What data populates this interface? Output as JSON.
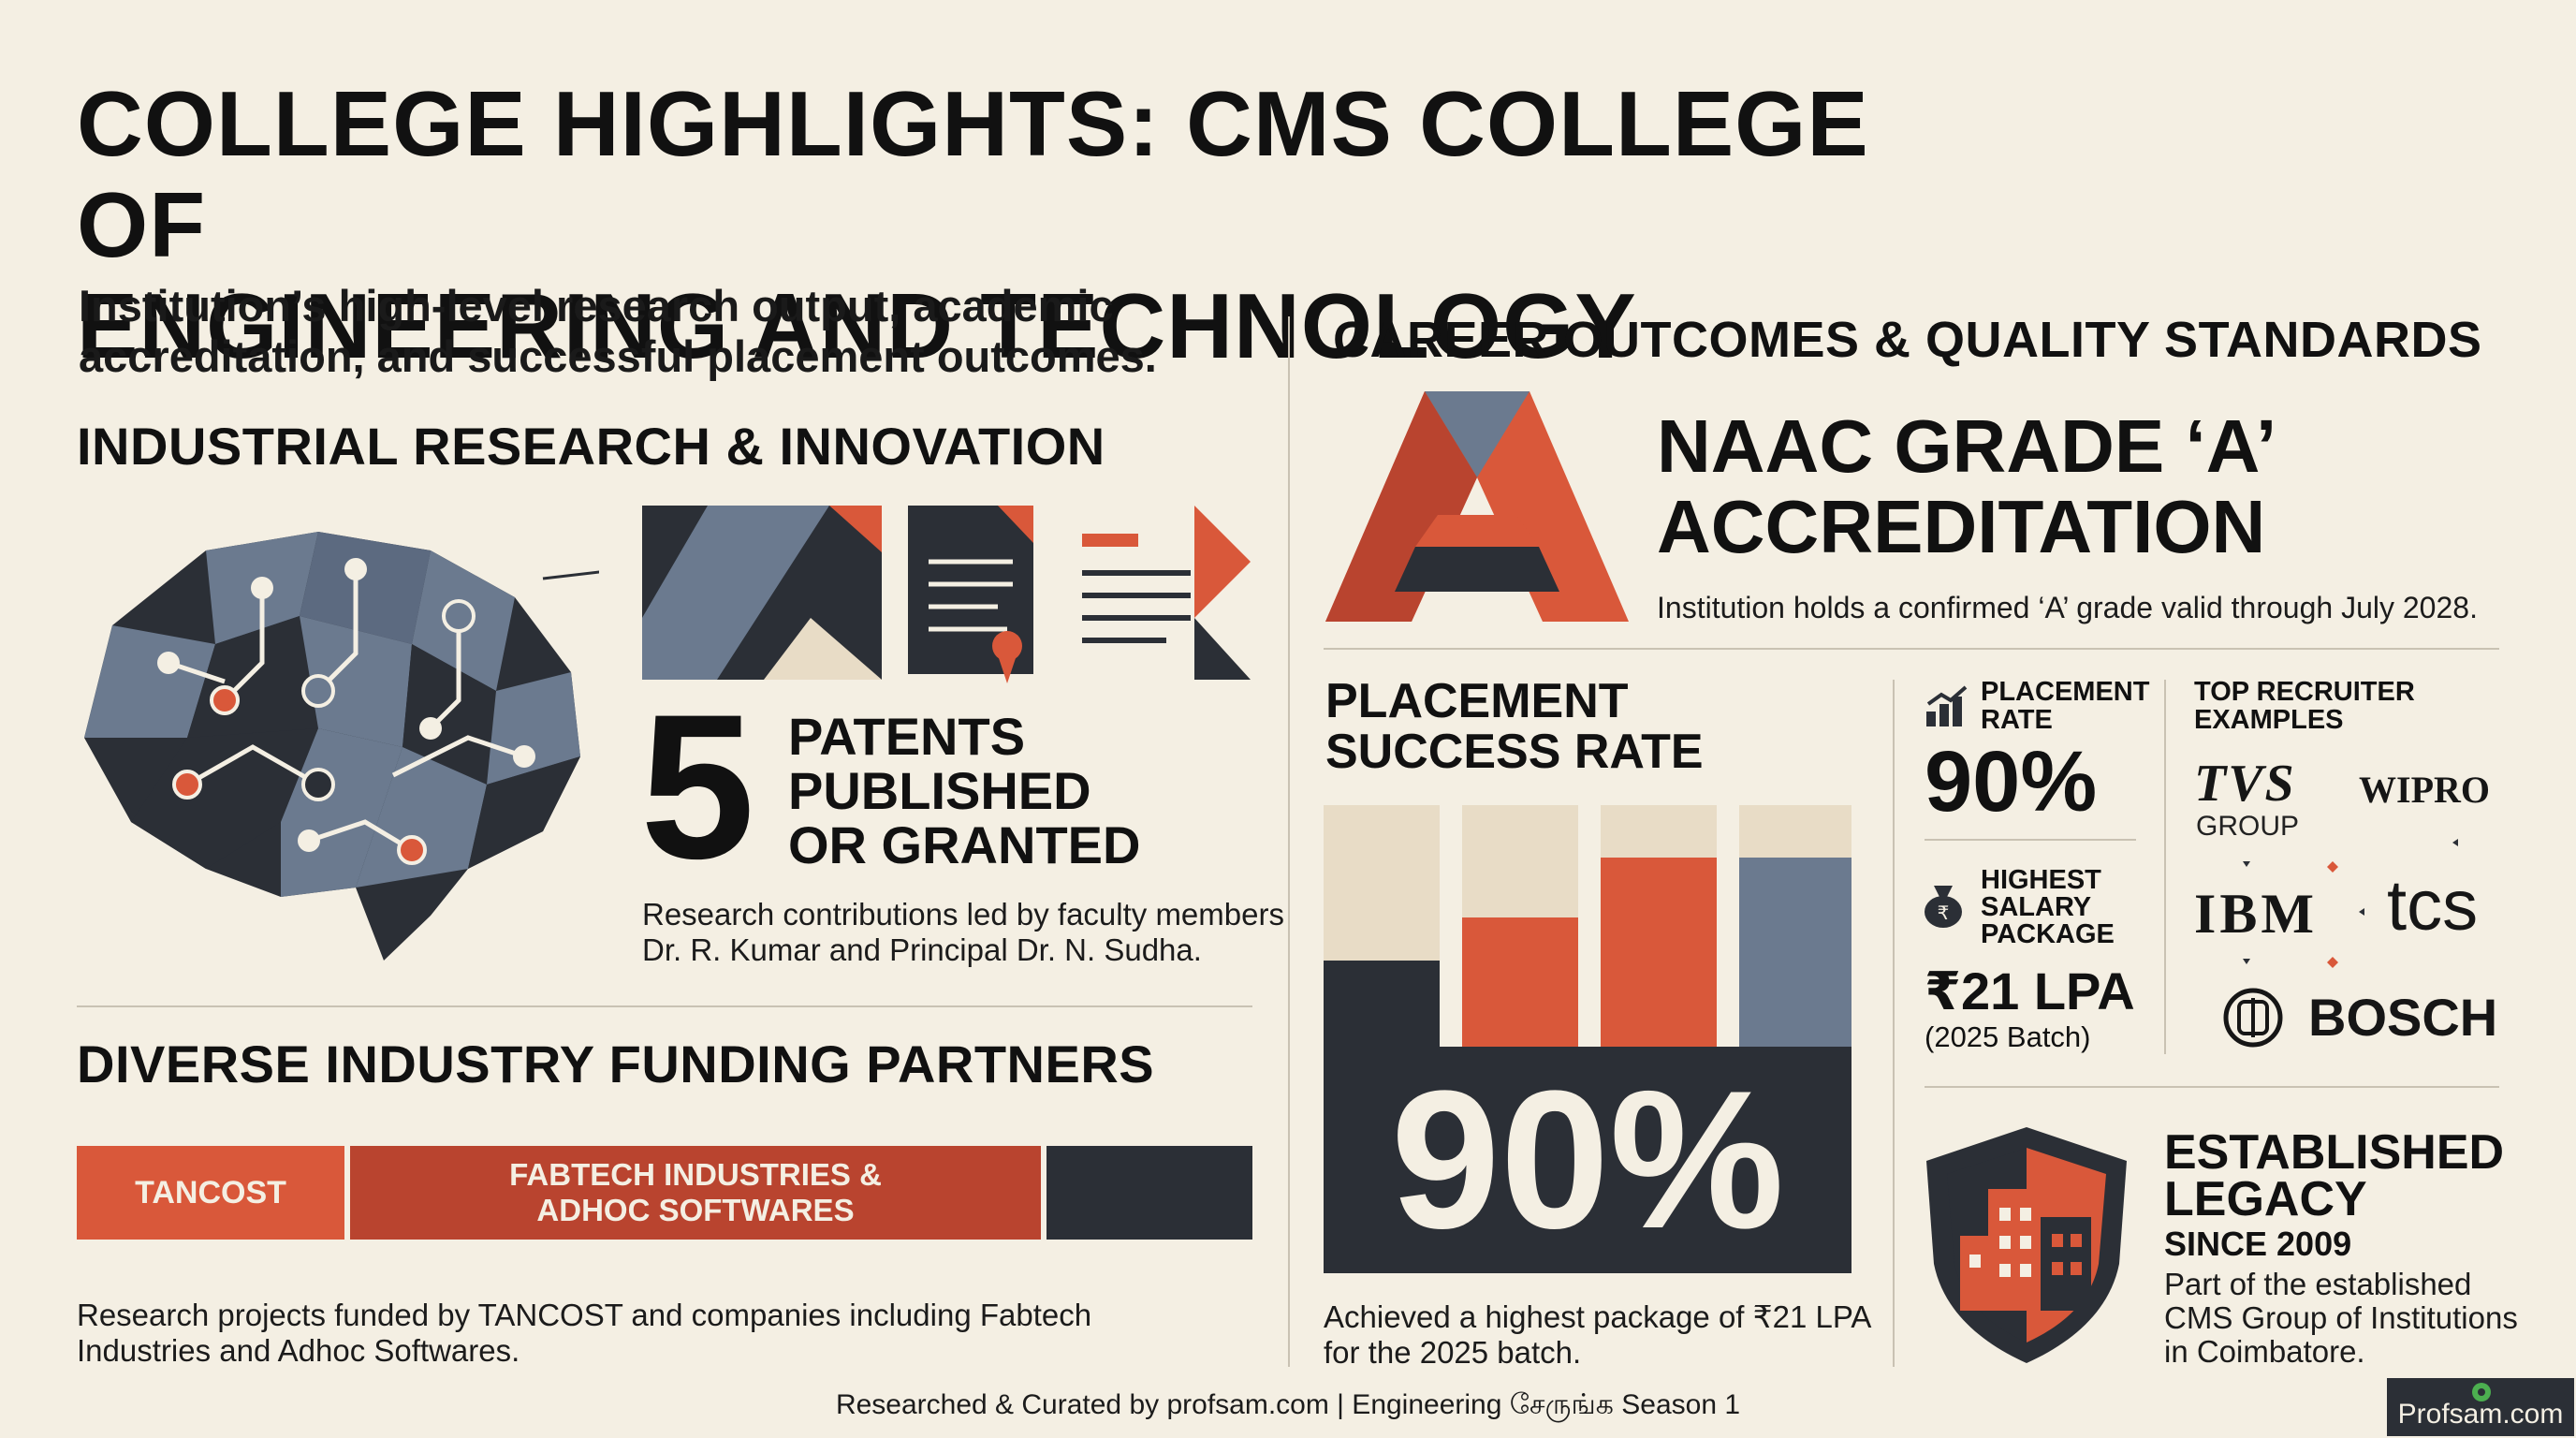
{
  "header": {
    "title_line1": "COLLEGE HIGHLIGHTS: CMS COLLEGE OF",
    "title_line2": "ENGINEERING AND TECHNOLOGY",
    "subtitle_line1": "Institution’s high-level research output, academic",
    "subtitle_line2": "accreditation, and successful placement outcomes."
  },
  "research": {
    "heading": "INDUSTRIAL RESEARCH & INNOVATION",
    "patent_count": "5",
    "patent_label_1": "PATENTS",
    "patent_label_2": "PUBLISHED",
    "patent_label_3": "OR GRANTED",
    "desc_line1": "Research contributions led by faculty members",
    "desc_line2": "Dr. R. Kumar and Principal Dr. N. Sudha."
  },
  "funding": {
    "heading": "DIVERSE INDUSTRY FUNDING PARTNERS",
    "bar": [
      {
        "label": "TANCOST",
        "color": "#d9583a"
      },
      {
        "label_line1": "FABTECH INDUSTRIES &",
        "label_line2": "ADHOC SOFTWARES",
        "color": "#b9442f"
      },
      {
        "label": "",
        "color": "#2b2f36"
      }
    ],
    "desc_line1": "Research projects funded by TANCOST and companies including Fabtech",
    "desc_line2": "Industries and Adhoc Softwares."
  },
  "career": {
    "heading": "CAREER OUTCOMES & QUALITY STANDARDS",
    "naac_title_1": "NAAC GRADE ‘A’",
    "naac_title_2": "ACCREDITATION",
    "naac_desc": "Institution holds a confirmed ‘A’ grade valid through July 2028."
  },
  "placement": {
    "heading_1": "PLACEMENT",
    "heading_2": "SUCCESS RATE",
    "big_value": "90%",
    "desc_line1": "Achieved a highest package of ₹21 LPA",
    "desc_line2": "for the 2025 batch.",
    "rate_label_1": "PLACEMENT",
    "rate_label_2": "RATE",
    "rate_value": "90%",
    "pkg_label_1": "HIGHEST",
    "pkg_label_2": "SALARY",
    "pkg_label_3": "PACKAGE",
    "pkg_value": "₹21 LPA",
    "pkg_batch": "(2025 Batch)"
  },
  "recruiters": {
    "heading_1": "TOP RECRUITER",
    "heading_2": "EXAMPLES",
    "tvs": "TVS",
    "tvs_sub": "GROUP",
    "wipro": "WIPRO",
    "ibm": "IBM",
    "tcs": "tcs",
    "bosch": "BOSCH"
  },
  "legacy": {
    "heading_1": "ESTABLISHED",
    "heading_2": "LEGACY",
    "since": "SINCE 2009",
    "desc_line1": "Part of the established",
    "desc_line2": "CMS Group of Institutions",
    "desc_line3": "in Coimbatore."
  },
  "footer": {
    "credit": "Researched & Curated by profsam.com | Engineering சேருங்க Season 1",
    "badge": "Profsam.com"
  },
  "colors": {
    "background": "#f4efe3",
    "orange": "#d9583a",
    "slate": "#6b7a8f",
    "dark": "#2b2f36",
    "cream": "#e8dcc6"
  }
}
